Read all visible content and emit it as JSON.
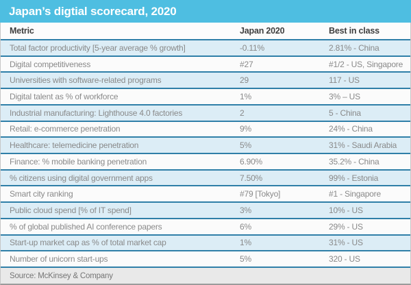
{
  "title": "Japan’s digtial scorecard, 2020",
  "footer": {
    "source": "Source: McKinsey & Company"
  },
  "colors": {
    "title_bar_bg": "#4EBEE1",
    "row_alt_bg": "#DCEDF6",
    "row_bg": "#FBFBFB",
    "divider_blue": "#2F7FA8",
    "footer_bg": "#E9E9E9",
    "body_text": "#898989",
    "header_text": "#3E3E3E"
  },
  "chart_data": {
    "type": "table",
    "title": "Japan’s digtial scorecard, 2020",
    "columns": [
      "Metric",
      "Japan 2020",
      "Best in class"
    ],
    "rows": [
      [
        "Total factor productivity [5-year average % growth]",
        "-0.11%",
        "2.81% - China"
      ],
      [
        "Digital competitiveness",
        "#27",
        "#1/2 - US, Singapore"
      ],
      [
        "Universities with software-related programs",
        "29",
        "117 - US"
      ],
      [
        "Digital talent as % of workforce",
        "1%",
        "3% – US"
      ],
      [
        "Industrial manufacturing: Lighthouse 4.0 factories",
        "2",
        "5 - China"
      ],
      [
        "Retail: e-commerce penetration",
        "9%",
        "24% - China"
      ],
      [
        "Healthcare: telemedicine penetration",
        "5%",
        "31% - Saudi Arabia"
      ],
      [
        "Finance: % mobile banking penetration",
        "6.90%",
        "35.2% - China"
      ],
      [
        "% citizens using digital government apps",
        "7.50%",
        "99% - Estonia"
      ],
      [
        "Smart city ranking",
        "#79 [Tokyo]",
        "#1 - Singapore"
      ],
      [
        "Public cloud spend [% of IT spend]",
        "3%",
        "10% - US"
      ],
      [
        "% of global published AI conference papers",
        "6%",
        "29% - US"
      ],
      [
        "Start-up market cap as % of total market cap",
        "1%",
        "31% - US"
      ],
      [
        "Number of unicorn start-ups",
        "5%",
        "320 - US"
      ]
    ],
    "source": "Source: McKinsey & Company"
  }
}
